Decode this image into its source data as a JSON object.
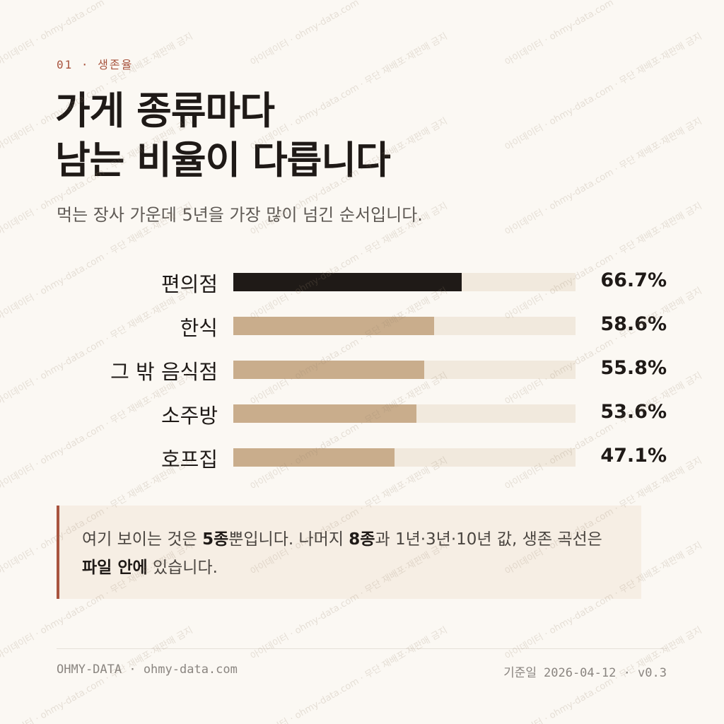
{
  "chart_data": {
    "type": "bar",
    "orientation": "horizontal",
    "kicker": "01 · 생존율",
    "title": [
      "가게 종류마다",
      "남는 비율이 다릅니다"
    ],
    "subtitle": "먹는 장사 가운데 5년을 가장 많이 넘긴 순서입니다.",
    "categories": [
      "편의점",
      "한식",
      "그 밖 음식점",
      "소주방",
      "호프집"
    ],
    "values": [
      66.7,
      58.6,
      55.8,
      53.6,
      47.1
    ],
    "value_labels": [
      "66.7%",
      "58.6%",
      "55.8%",
      "53.6%",
      "47.1%"
    ],
    "colors": [
      "#1f1a17",
      "#c9ad8c",
      "#c9ad8c",
      "#c9ad8c",
      "#c9ad8c"
    ],
    "track_color": "#f1e9dd",
    "xlim": [
      0,
      100
    ],
    "annotation": [
      {
        "text": "여기 보이는 것은 ",
        "bold": false
      },
      {
        "text": "5종",
        "bold": true
      },
      {
        "text": "뿐입니다. 나머지 ",
        "bold": false
      },
      {
        "text": "8종",
        "bold": true
      },
      {
        "text": "과 1년·3년·10년 값, 생존 곡선은 ",
        "bold": false
      },
      {
        "text": "파일 안에",
        "bold": true
      },
      {
        "text": " 있습니다.",
        "bold": false
      }
    ],
    "footer_left": "OHMY-DATA · ohmy-data.com",
    "as_of_label": "기준일",
    "as_of": "2026-04-12 · v0.3",
    "watermark": "아이데이터 · ohmy-data.com · 무단 재배포·재판매 금지"
  }
}
